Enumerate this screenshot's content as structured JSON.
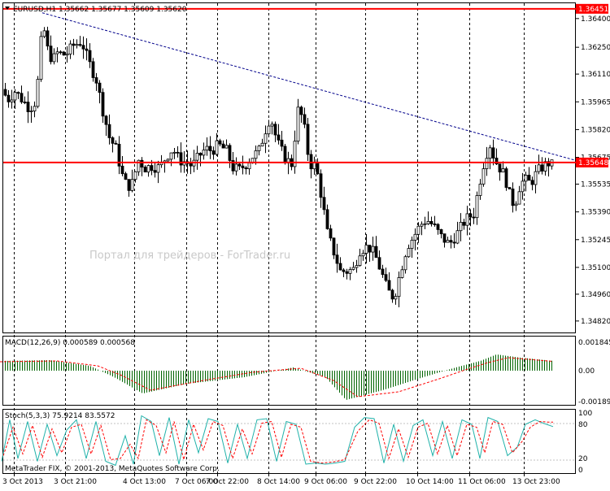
{
  "header": {
    "symbol": "EURUSD,H1",
    "ohlc": "1.35662 1.35677 1.35609 1.35620"
  },
  "watermark": "Портал для трейдеров - ForTrader.ru",
  "copyright": "MetaTrader FIX, © 2001-2013, MetaQuotes Software Corp.",
  "colors": {
    "candle": "#000000",
    "hline": "#ff0000",
    "trendline": "#00008b",
    "period_sep": "#000000",
    "macd_hist": "#006400",
    "macd_signal": "#ff0000",
    "stoch_main": "#20b2aa",
    "stoch_signal": "#ff0000"
  },
  "chart_data": [
    {
      "type": "candlestick",
      "symbol": "EURUSD",
      "timeframe": "H1",
      "price_axis_ticks": [
        "1.36400",
        "1.36250",
        "1.36110",
        "1.35965",
        "1.35820",
        "1.35675",
        "1.35535",
        "1.35390",
        "1.35245",
        "1.35100",
        "1.34960",
        "1.34820"
      ],
      "ylim": [
        1.3476,
        1.3648
      ],
      "time_axis_labels": [
        "3 Oct 2013",
        "3 Oct 21:00",
        "4 Oct 13:00",
        "7 Oct 06:00",
        "7 Oct 22:00",
        "8 Oct 14:00",
        "9 Oct 06:00",
        "9 Oct 22:00",
        "10 Oct 14:00",
        "11 Oct 06:00",
        "13 Oct 23:00"
      ],
      "horizontal_lines": [
        {
          "price": 1.36451,
          "label": "1.36451"
        },
        {
          "price": 1.35648,
          "label": "1.35648"
        }
      ],
      "current_price": "1.35620",
      "trendline": {
        "from": {
          "time": "3 Oct 21:00",
          "price": 1.3643
        },
        "to": {
          "time": "13 Oct 23:00",
          "price": 1.3566
        }
      },
      "close_path": [
        [
          0,
          1.3603
        ],
        [
          10,
          1.3598
        ],
        [
          18,
          1.3602
        ],
        [
          28,
          1.3597
        ],
        [
          36,
          1.3593
        ],
        [
          44,
          1.3597
        ],
        [
          52,
          1.3638
        ],
        [
          58,
          1.3624
        ],
        [
          64,
          1.3618
        ],
        [
          70,
          1.3622
        ],
        [
          80,
          1.3621
        ],
        [
          90,
          1.3626
        ],
        [
          100,
          1.3628
        ],
        [
          108,
          1.3618
        ],
        [
          118,
          1.3608
        ],
        [
          126,
          1.3592
        ],
        [
          134,
          1.3578
        ],
        [
          142,
          1.3572
        ],
        [
          150,
          1.3558
        ],
        [
          156,
          1.3552
        ],
        [
          162,
          1.3554
        ],
        [
          170,
          1.3566
        ],
        [
          178,
          1.3562
        ],
        [
          186,
          1.3563
        ],
        [
          196,
          1.3562
        ],
        [
          204,
          1.3568
        ],
        [
          212,
          1.3572
        ],
        [
          220,
          1.3566
        ],
        [
          228,
          1.3565
        ],
        [
          236,
          1.3563
        ],
        [
          244,
          1.3568
        ],
        [
          252,
          1.3572
        ],
        [
          260,
          1.3571
        ],
        [
          268,
          1.3574
        ],
        [
          278,
          1.3571
        ],
        [
          286,
          1.3562
        ],
        [
          294,
          1.3561
        ],
        [
          302,
          1.3564
        ],
        [
          310,
          1.3568
        ],
        [
          318,
          1.3571
        ],
        [
          326,
          1.3582
        ],
        [
          332,
          1.3589
        ],
        [
          340,
          1.3576
        ],
        [
          350,
          1.3567
        ],
        [
          358,
          1.3564
        ],
        [
          366,
          1.3592
        ],
        [
          372,
          1.3588
        ],
        [
          380,
          1.3564
        ],
        [
          388,
          1.3563
        ],
        [
          396,
          1.3544
        ],
        [
          402,
          1.3528
        ],
        [
          410,
          1.3518
        ],
        [
          418,
          1.3508
        ],
        [
          426,
          1.3508
        ],
        [
          434,
          1.3509
        ],
        [
          442,
          1.3519
        ],
        [
          452,
          1.3521
        ],
        [
          460,
          1.3517
        ],
        [
          468,
          1.3508
        ],
        [
          476,
          1.3498
        ],
        [
          484,
          1.3494
        ],
        [
          492,
          1.3508
        ],
        [
          500,
          1.3521
        ],
        [
          508,
          1.3526
        ],
        [
          516,
          1.3532
        ],
        [
          524,
          1.3535
        ],
        [
          532,
          1.3532
        ],
        [
          542,
          1.3526
        ],
        [
          552,
          1.3522
        ],
        [
          562,
          1.3528
        ],
        [
          572,
          1.3535
        ],
        [
          582,
          1.3538
        ],
        [
          590,
          1.3556
        ],
        [
          596,
          1.3568
        ],
        [
          602,
          1.3574
        ],
        [
          608,
          1.3566
        ],
        [
          614,
          1.3562
        ],
        [
          620,
          1.3558
        ],
        [
          626,
          1.3548
        ],
        [
          632,
          1.3542
        ],
        [
          638,
          1.3552
        ],
        [
          644,
          1.3556
        ],
        [
          652,
          1.3554
        ],
        [
          660,
          1.356
        ],
        [
          668,
          1.3563
        ],
        [
          676,
          1.3565
        ],
        [
          680,
          1.3562
        ]
      ]
    },
    {
      "type": "bar",
      "name": "MACD(12,26,9) 0.000589 0.000568",
      "axis_ticks": [
        "0.001845",
        "0.00",
        "-0.001893"
      ],
      "ylim": [
        -0.0021,
        0.0021
      ],
      "histogram_path": [
        [
          0,
          0.0006
        ],
        [
          60,
          0.00065
        ],
        [
          110,
          0.0003
        ],
        [
          140,
          -0.0004
        ],
        [
          175,
          -0.0014
        ],
        [
          230,
          -0.0008
        ],
        [
          300,
          -0.0004
        ],
        [
          360,
          0.0002
        ],
        [
          400,
          -0.0004
        ],
        [
          425,
          -0.0018
        ],
        [
          470,
          -0.0012
        ],
        [
          520,
          -0.0004
        ],
        [
          560,
          0.0002
        ],
        [
          590,
          0.0006
        ],
        [
          610,
          0.001
        ],
        [
          640,
          0.0008
        ],
        [
          680,
          0.0006
        ]
      ],
      "signal_path": [
        [
          0,
          0.00055
        ],
        [
          70,
          0.0006
        ],
        [
          120,
          0.0003
        ],
        [
          150,
          -0.0003
        ],
        [
          185,
          -0.0012
        ],
        [
          250,
          -0.0006
        ],
        [
          310,
          -0.0001
        ],
        [
          370,
          0.00015
        ],
        [
          410,
          -0.0006
        ],
        [
          440,
          -0.0016
        ],
        [
          490,
          -0.0013
        ],
        [
          540,
          -0.0005
        ],
        [
          575,
          0.0001
        ],
        [
          600,
          0.0005
        ],
        [
          625,
          0.0008
        ],
        [
          650,
          0.0007
        ],
        [
          680,
          0.00057
        ]
      ]
    },
    {
      "type": "line",
      "name": "Stoch(5,3,3) 75.9214 83.5572",
      "axis_ticks": [
        "100",
        "80",
        "20",
        "0"
      ],
      "ylim": [
        0,
        100
      ],
      "series": [
        {
          "name": "main",
          "values": [
            [
              2,
              15
            ],
            [
              12,
              88
            ],
            [
              22,
              20
            ],
            [
              34,
              85
            ],
            [
              46,
              15
            ],
            [
              58,
              80
            ],
            [
              70,
              25
            ],
            [
              82,
              70
            ],
            [
              94,
              88
            ],
            [
              106,
              20
            ],
            [
              118,
              85
            ],
            [
              130,
              15
            ],
            [
              142,
              8
            ],
            [
              154,
              60
            ],
            [
              164,
              10
            ],
            [
              174,
              95
            ],
            [
              186,
              85
            ],
            [
              196,
              25
            ],
            [
              208,
              92
            ],
            [
              220,
              10
            ],
            [
              232,
              88
            ],
            [
              244,
              30
            ],
            [
              256,
              90
            ],
            [
              268,
              85
            ],
            [
              280,
              12
            ],
            [
              292,
              80
            ],
            [
              304,
              20
            ],
            [
              316,
              88
            ],
            [
              328,
              90
            ],
            [
              340,
              15
            ],
            [
              352,
              85
            ],
            [
              364,
              80
            ],
            [
              376,
              10
            ],
            [
              388,
              12
            ],
            [
              400,
              10
            ],
            [
              412,
              12
            ],
            [
              424,
              15
            ],
            [
              436,
              75
            ],
            [
              448,
              92
            ],
            [
              460,
              90
            ],
            [
              472,
              12
            ],
            [
              484,
              80
            ],
            [
              496,
              15
            ],
            [
              508,
              78
            ],
            [
              520,
              88
            ],
            [
              532,
              25
            ],
            [
              544,
              85
            ],
            [
              556,
              20
            ],
            [
              568,
              88
            ],
            [
              580,
              80
            ],
            [
              590,
              20
            ],
            [
              600,
              92
            ],
            [
              612,
              85
            ],
            [
              624,
              25
            ],
            [
              636,
              40
            ],
            [
              646,
              80
            ],
            [
              658,
              88
            ],
            [
              668,
              82
            ],
            [
              680,
              76
            ]
          ]
        },
        {
          "name": "signal",
          "values": [
            [
              4,
              25
            ],
            [
              16,
              75
            ],
            [
              28,
              28
            ],
            [
              40,
              78
            ],
            [
              52,
              22
            ],
            [
              64,
              72
            ],
            [
              76,
              30
            ],
            [
              88,
              75
            ],
            [
              100,
              80
            ],
            [
              112,
              28
            ],
            [
              124,
              78
            ],
            [
              136,
              18
            ],
            [
              148,
              20
            ],
            [
              160,
              45
            ],
            [
              170,
              20
            ],
            [
              180,
              88
            ],
            [
              192,
              78
            ],
            [
              204,
              30
            ],
            [
              214,
              85
            ],
            [
              226,
              18
            ],
            [
              238,
              80
            ],
            [
              250,
              35
            ],
            [
              262,
              85
            ],
            [
              274,
              78
            ],
            [
              286,
              20
            ],
            [
              298,
              72
            ],
            [
              310,
              28
            ],
            [
              322,
              82
            ],
            [
              334,
              85
            ],
            [
              346,
              22
            ],
            [
              358,
              80
            ],
            [
              370,
              75
            ],
            [
              382,
              15
            ],
            [
              396,
              12
            ],
            [
              410,
              14
            ],
            [
              424,
              18
            ],
            [
              440,
              68
            ],
            [
              454,
              88
            ],
            [
              466,
              82
            ],
            [
              478,
              20
            ],
            [
              490,
              72
            ],
            [
              502,
              22
            ],
            [
              514,
              75
            ],
            [
              526,
              82
            ],
            [
              538,
              28
            ],
            [
              550,
              78
            ],
            [
              562,
              25
            ],
            [
              574,
              80
            ],
            [
              586,
              75
            ],
            [
              596,
              30
            ],
            [
              606,
              85
            ],
            [
              618,
              80
            ],
            [
              630,
              30
            ],
            [
              642,
              50
            ],
            [
              652,
              75
            ],
            [
              664,
              85
            ],
            [
              674,
              84
            ],
            [
              680,
              84
            ]
          ]
        }
      ]
    }
  ]
}
